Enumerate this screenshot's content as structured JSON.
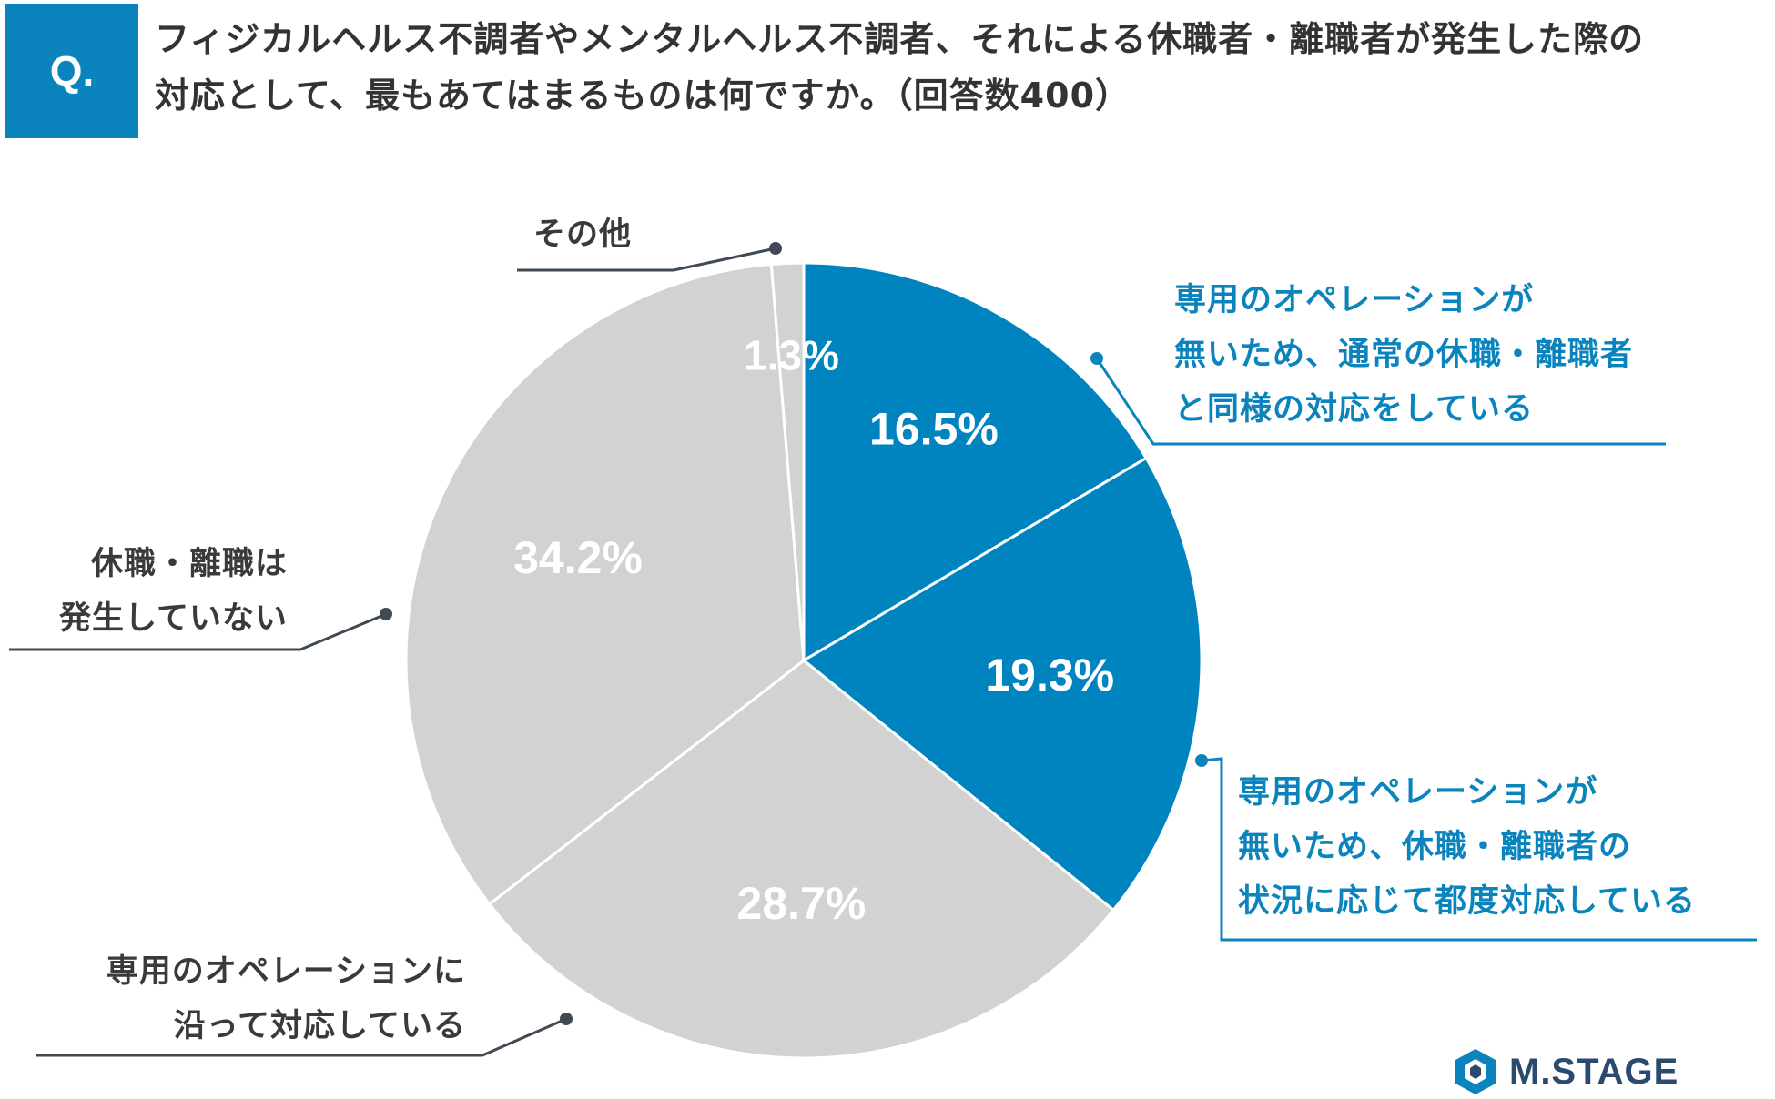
{
  "badge": "Q.",
  "question": {
    "line1": "フィジカルヘルス不調者やメンタルヘルス不調者、それによる休職者・離職者が発生した際の",
    "line2": "対応として、最もあてはまるものは何ですか。（回答数400）"
  },
  "chart_data": {
    "type": "pie",
    "unit": "%",
    "start_angle_deg": 0,
    "direction": "clockwise",
    "slices": [
      {
        "value": 16.5,
        "value_label": "16.5%",
        "label_lines": [
          "専用のオペレーションが",
          "無いため、通常の休職・離職者",
          "と同様の対応をしている"
        ],
        "color": "#0084c0"
      },
      {
        "value": 19.3,
        "value_label": "19.3%",
        "label_lines": [
          "専用のオペレーションが",
          "無いため、休職・離職者の",
          "状況に応じて都度対応している"
        ],
        "color": "#0084c0"
      },
      {
        "value": 28.7,
        "value_label": "28.7%",
        "label_lines": [
          "専用のオペレーションに",
          "沿って対応している"
        ],
        "color": "#d3d2d3"
      },
      {
        "value": 34.2,
        "value_label": "34.2%",
        "label_lines": [
          "休職・離職は",
          "発生していない"
        ],
        "color": "#d3d2d3"
      },
      {
        "value": 1.3,
        "value_label": "1.3%",
        "label_lines": [
          "その他"
        ],
        "color": "#d3d2d3"
      }
    ]
  },
  "colors": {
    "accent": "#0b84bd",
    "gray_slice": "#d3d2d3",
    "leader_blue": "#0b84bd",
    "leader_gray": "#3f4a55"
  },
  "brand": {
    "name": "M.STAGE",
    "icon": "hexagon-logo-icon"
  }
}
